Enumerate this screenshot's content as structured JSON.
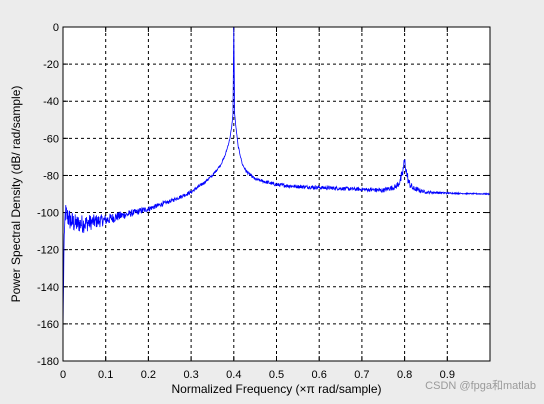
{
  "chart_data": {
    "type": "line",
    "title": "",
    "xlabel": "Normalized Frequency  (×π rad/sample)",
    "ylabel": "Power Spectral Density  (dB/ rad/sample)",
    "xlim": [
      0,
      1
    ],
    "ylim": [
      -180,
      0
    ],
    "x_ticks": [
      0,
      0.1,
      0.2,
      0.3,
      0.4,
      0.5,
      0.6,
      0.7,
      0.8,
      0.9
    ],
    "x_tick_labels": [
      "0",
      "0.1",
      "0.2",
      "0.3",
      "0.4",
      "0.5",
      "0.6",
      "0.7",
      "0.8",
      "0.9"
    ],
    "y_ticks": [
      0,
      -20,
      -40,
      -60,
      -80,
      -100,
      -120,
      -140,
      -160,
      -180
    ],
    "y_tick_labels": [
      "0",
      "-20",
      "-40",
      "-60",
      "-80",
      "-100",
      "-120",
      "-140",
      "-160",
      "-180"
    ],
    "grid": true,
    "series": [
      {
        "color": "#0000ff",
        "x": [
          0,
          0.002,
          0.005,
          0.01,
          0.02,
          0.03,
          0.05,
          0.07,
          0.1,
          0.13,
          0.15,
          0.2,
          0.25,
          0.3,
          0.33,
          0.35,
          0.37,
          0.38,
          0.39,
          0.395,
          0.398,
          0.4,
          0.402,
          0.405,
          0.41,
          0.42,
          0.43,
          0.45,
          0.5,
          0.55,
          0.6,
          0.65,
          0.7,
          0.75,
          0.78,
          0.79,
          0.795,
          0.8,
          0.805,
          0.81,
          0.82,
          0.85,
          0.9,
          0.95,
          1.0
        ],
        "values": [
          -165,
          -125,
          -100,
          -102,
          -105,
          -106,
          -106,
          -105,
          -104,
          -102,
          -101,
          -98,
          -94,
          -89,
          -84,
          -80,
          -74,
          -69,
          -61,
          -54,
          -47,
          0,
          -47,
          -54,
          -64,
          -74,
          -78,
          -82,
          -85,
          -86,
          -86.5,
          -87,
          -87.5,
          -88,
          -86,
          -83,
          -79,
          -72,
          -79,
          -84,
          -87,
          -89,
          -89.5,
          -89.8,
          -90
        ],
        "noise_dB": [
          0,
          6,
          6,
          6,
          6,
          5,
          5,
          4,
          3,
          2.5,
          2,
          1.5,
          1,
          1,
          0.8,
          0.8,
          0.6,
          0.6,
          0.5,
          0.4,
          0.3,
          0,
          0.3,
          0.4,
          0.5,
          0.6,
          0.8,
          0.8,
          1,
          1,
          1,
          1,
          1,
          1.2,
          1.5,
          2.5,
          3,
          3,
          3,
          2.5,
          1.5,
          0.8,
          0.4,
          0.3,
          0.3
        ]
      }
    ]
  },
  "watermark": {
    "text": "CSDN @fpga和matlab"
  }
}
